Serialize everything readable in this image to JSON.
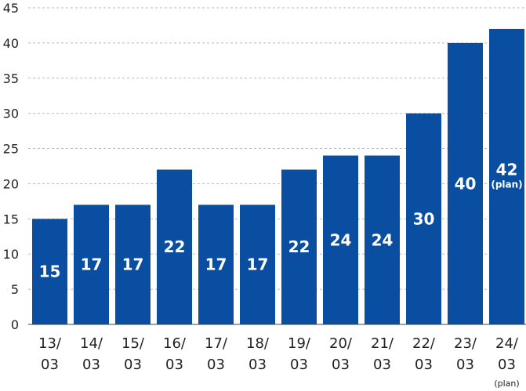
{
  "chart_data": {
    "type": "bar",
    "categories": [
      "13/03",
      "14/03",
      "15/03",
      "16/03",
      "17/03",
      "18/03",
      "19/03",
      "20/03",
      "21/03",
      "22/03",
      "23/03",
      "24/03"
    ],
    "category_notes": [
      "",
      "",
      "",
      "",
      "",
      "",
      "",
      "",
      "",
      "",
      "",
      "(plan)"
    ],
    "values": [
      15,
      17,
      17,
      22,
      17,
      17,
      22,
      24,
      24,
      30,
      40,
      42
    ],
    "value_labels": [
      "15",
      "17",
      "17",
      "22",
      "17",
      "17",
      "22",
      "24",
      "24",
      "30",
      "40",
      "42"
    ],
    "value_notes": [
      "",
      "",
      "",
      "",
      "",
      "",
      "",
      "",
      "",
      "",
      "",
      "(plan)"
    ],
    "yticks": [
      "0",
      "5",
      "10",
      "15",
      "20",
      "25",
      "30",
      "35",
      "40",
      "45"
    ],
    "ylim": [
      0,
      45
    ],
    "grid": true,
    "bar_color": "#0a4ea2",
    "title": "",
    "xlabel": "",
    "ylabel": ""
  }
}
